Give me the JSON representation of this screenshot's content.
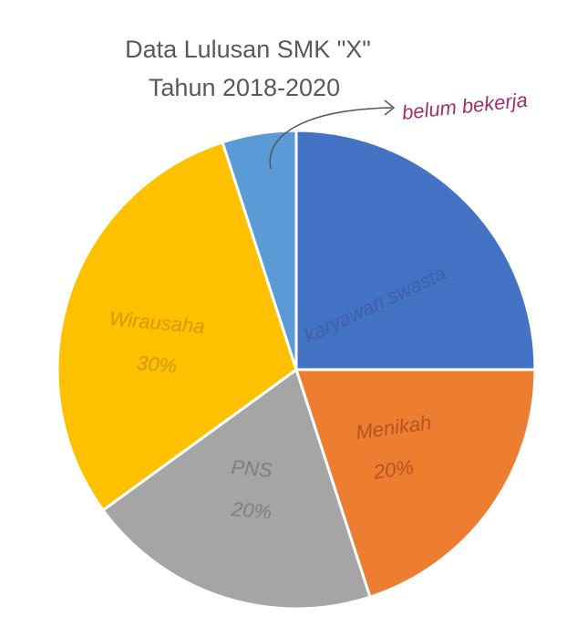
{
  "chart_data": {
    "type": "pie",
    "title": "Data Lulusan SMK \"X\"",
    "subtitle": "Tahun 2018-2020",
    "categories": [
      "karyawan swasta",
      "Menikah",
      "PNS",
      "Wirausaha",
      "belum bekerja"
    ],
    "values": [
      25,
      20,
      20,
      30,
      5
    ],
    "value_labels": [
      null,
      "20%",
      "20%",
      "30%",
      null
    ],
    "colors": [
      "#4472c4",
      "#ed7d31",
      "#a5a5a5",
      "#ffc000",
      "#5b9bd5"
    ]
  }
}
